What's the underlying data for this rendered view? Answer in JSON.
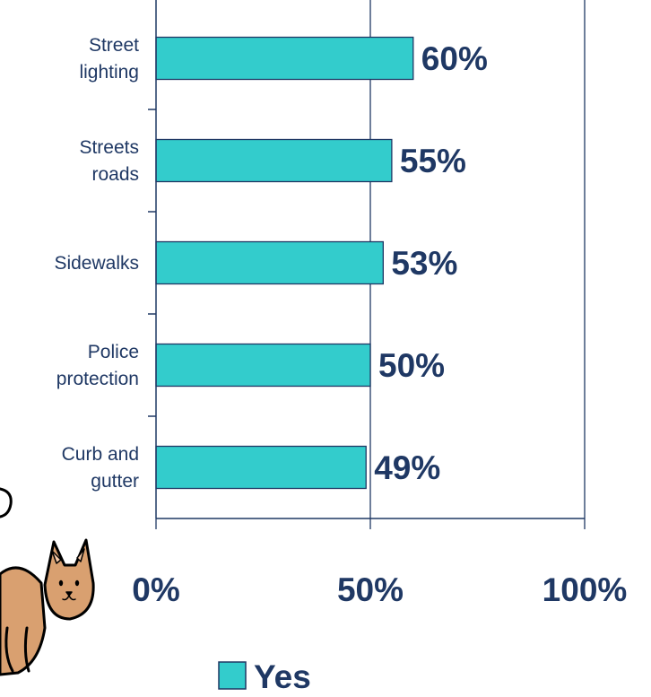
{
  "chart_data": {
    "type": "bar",
    "orientation": "horizontal",
    "categories": [
      [
        "Street",
        "lighting"
      ],
      [
        "Streets",
        "roads"
      ],
      [
        "Sidewalks"
      ],
      [
        "Police",
        "protection"
      ],
      [
        "Curb and",
        "gutter"
      ]
    ],
    "series": [
      {
        "name": "Yes",
        "values": [
          60,
          55,
          53,
          50,
          49
        ],
        "color": "#33cccc"
      }
    ],
    "data_labels": [
      "60%",
      "55%",
      "53%",
      "50%",
      "49%"
    ],
    "x_ticks": [
      "0%",
      "50%",
      "100%"
    ],
    "xlim": [
      0,
      100
    ],
    "grid": "vertical",
    "legend": {
      "position": "bottom",
      "entries": [
        "Yes"
      ]
    },
    "colors": {
      "bar": "#33cccc",
      "bar_stroke": "#1f3864",
      "text": "#1f3864",
      "axis": "#1f3864"
    }
  },
  "decoration": {
    "icon": "cat-clipart-icon"
  }
}
